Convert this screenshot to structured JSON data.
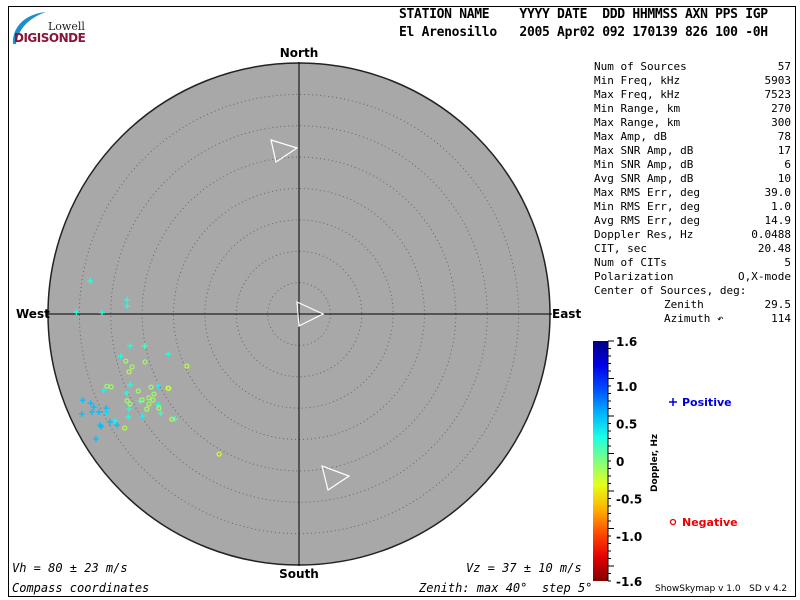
{
  "logo": {
    "line1": "Lowell",
    "line2": "DIGISONDE"
  },
  "header": {
    "labels": "STATION NAME    YYYY DATE  DDD HHMMSS AXN PPS IGP",
    "values": "El Arenosillo   2005 Apr02 092 170139 826 100 -0H"
  },
  "stats": [
    {
      "label": "Num of Sources",
      "value": "57"
    },
    {
      "label": "Min Freq, kHz",
      "value": "5903"
    },
    {
      "label": "Max Freq, kHz",
      "value": "7523"
    },
    {
      "label": "Min Range, km",
      "value": "270"
    },
    {
      "label": "Max Range, km",
      "value": "300"
    },
    {
      "label": "Max Amp, dB",
      "value": "78"
    },
    {
      "label": "Max SNR Amp, dB",
      "value": "17"
    },
    {
      "label": "Min SNR Amp, dB",
      "value": "6"
    },
    {
      "label": "Avg SNR Amp, dB",
      "value": "10"
    },
    {
      "label": "Max RMS Err, deg",
      "value": "39.0"
    },
    {
      "label": "Min RMS Err, deg",
      "value": "1.0"
    },
    {
      "label": "Avg RMS Err, deg",
      "value": "14.9"
    },
    {
      "label": "Doppler Res, Hz",
      "value": "0.0488"
    },
    {
      "label": "CIT, sec",
      "value": "20.48"
    },
    {
      "label": "Num of CITs",
      "value": "5"
    },
    {
      "label": "Polarization",
      "value": "O,X-mode"
    },
    {
      "label": "Center of Sources, deg:",
      "value": ""
    },
    {
      "label": "Zenith",
      "value": "29.5"
    },
    {
      "label": "Azimuth ↶",
      "value": "114"
    }
  ],
  "bottom": {
    "vh": "Vh = 80 ± 23 m/s",
    "vz": "Vz = 37 ± 10 m/s",
    "coords": "Compass coordinates",
    "zenith": "Zenith: max 40°  step 5°",
    "version": "ShowSkymap v 1.0   SD v 4.2"
  },
  "chart_data": {
    "type": "scatter",
    "projection": "polar skymap",
    "compass": {
      "north": "North",
      "south": "South",
      "east": "East",
      "west": "West"
    },
    "zenith_max": 40,
    "zenith_step": 5,
    "colorbar": {
      "label": "Doppler, Hz",
      "range": [
        -1.6,
        1.6
      ],
      "ticks": [
        "1.6",
        "1.0",
        "0.5",
        "0",
        "-0.5",
        "-1.0",
        "-1.6"
      ],
      "colormap": "jet"
    },
    "legend": {
      "positive": {
        "label": "Positive",
        "marker": "+",
        "color": "#0000dd"
      },
      "negative": {
        "label": "Negative",
        "marker": "o",
        "color": "#ee0000"
      }
    },
    "background": "#a8a8a8",
    "points": [
      {
        "zen": 33.7,
        "az": 279.0,
        "dop": 0.3
      },
      {
        "zen": 27.5,
        "az": 274.7,
        "dop": 0.3
      },
      {
        "zen": 27.4,
        "az": 272.7,
        "dop": 0.3
      },
      {
        "zen": 35.5,
        "az": 270.5,
        "dop": 0.3
      },
      {
        "zen": 31.4,
        "az": 270.3,
        "dop": 0.3
      },
      {
        "zen": 27.4,
        "az": 259.3,
        "dop": 0.3
      },
      {
        "zen": 25.1,
        "az": 258.3,
        "dop": 0.2
      },
      {
        "zen": 29.2,
        "az": 256.7,
        "dop": 0.3
      },
      {
        "zen": 21.8,
        "az": 253.0,
        "dop": 0.3
      },
      {
        "zen": 29.2,
        "az": 247.2,
        "dop": 0.3
      },
      {
        "zen": 33.4,
        "az": 248.7,
        "dop": 0.4
      },
      {
        "zen": 25.2,
        "az": 243.0,
        "dop": 0.4
      },
      {
        "zen": 37.1,
        "az": 248.3,
        "dop": 0.6
      },
      {
        "zen": 36.1,
        "az": 246.8,
        "dop": 0.6
      },
      {
        "zen": 35.9,
        "az": 245.6,
        "dop": 0.6
      },
      {
        "zen": 34.2,
        "az": 244.0,
        "dop": 0.6
      },
      {
        "zen": 38.1,
        "az": 245.3,
        "dop": 0.6
      },
      {
        "zen": 36.5,
        "az": 244.7,
        "dop": 0.6
      },
      {
        "zen": 35.5,
        "az": 243.9,
        "dop": 0.6
      },
      {
        "zen": 34.4,
        "az": 243.0,
        "dop": 0.5
      },
      {
        "zen": 30.2,
        "az": 245.3,
        "dop": 0.3
      },
      {
        "zen": 28.9,
        "az": 241.3,
        "dop": 0.2
      },
      {
        "zen": 31.0,
        "az": 240.8,
        "dop": 0.3
      },
      {
        "zen": 26.7,
        "az": 237.2,
        "dop": 0.3
      },
      {
        "zen": 27.1,
        "az": 234.3,
        "dop": 0.2
      },
      {
        "zen": 31.8,
        "az": 238.9,
        "dop": 0.3
      },
      {
        "zen": 29.8,
        "az": 237.0,
        "dop": 0.4
      },
      {
        "zen": 33.9,
        "az": 239.8,
        "dop": 0.4
      },
      {
        "zen": 34.7,
        "az": 240.3,
        "dop": 0.6
      },
      {
        "zen": 34.0,
        "az": 238.6,
        "dop": 0.6
      },
      {
        "zen": 36.3,
        "az": 240.8,
        "dop": 0.6
      },
      {
        "zen": 36.3,
        "az": 240.3,
        "dop": 0.6
      },
      {
        "zen": 25.9,
        "az": 229.7,
        "dop": 0.2
      },
      {
        "zen": 38.0,
        "az": 238.4,
        "dop": 0.6
      },
      {
        "zen": 28.6,
        "az": 254.8,
        "dop": -0.1
      },
      {
        "zen": 25.7,
        "az": 252.7,
        "dop": -0.1
      },
      {
        "zen": 27.9,
        "az": 252.4,
        "dop": -0.1
      },
      {
        "zen": 28.6,
        "az": 251.2,
        "dop": -0.2
      },
      {
        "zen": 19.7,
        "az": 245.1,
        "dop": -0.2
      },
      {
        "zen": 32.7,
        "az": 249.4,
        "dop": -0.1
      },
      {
        "zen": 32.1,
        "az": 248.8,
        "dop": -0.1
      },
      {
        "zen": 26.3,
        "az": 243.7,
        "dop": -0.1
      },
      {
        "zen": 28.4,
        "az": 244.4,
        "dop": -0.1
      },
      {
        "zen": 24.0,
        "az": 240.5,
        "dop": -0.2
      },
      {
        "zen": 23.9,
        "az": 240.3,
        "dop": -0.2
      },
      {
        "zen": 26.4,
        "az": 241.1,
        "dop": -0.1
      },
      {
        "zen": 27.4,
        "az": 240.8,
        "dop": -0.1
      },
      {
        "zen": 27.0,
        "az": 239.5,
        "dop": -0.1
      },
      {
        "zen": 28.5,
        "az": 241.3,
        "dop": -0.1
      },
      {
        "zen": 30.7,
        "az": 243.2,
        "dop": -0.1
      },
      {
        "zen": 30.5,
        "az": 242.0,
        "dop": -0.1
      },
      {
        "zen": 27.9,
        "az": 239.0,
        "dop": -0.1
      },
      {
        "zen": 26.9,
        "az": 236.1,
        "dop": -0.1
      },
      {
        "zen": 28.6,
        "az": 238.0,
        "dop": -0.1
      },
      {
        "zen": 26.3,
        "az": 230.4,
        "dop": -0.2
      },
      {
        "zen": 33.2,
        "az": 236.8,
        "dop": -0.2
      },
      {
        "zen": 25.7,
        "az": 209.7,
        "dop": -0.3
      }
    ]
  }
}
